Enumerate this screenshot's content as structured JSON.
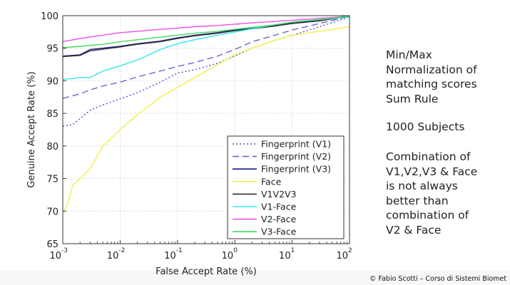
{
  "chart_data": {
    "type": "line",
    "title": "",
    "xlabel": "False Accept Rate (%)",
    "ylabel": "Genuine Accept Rate (%)",
    "xscale": "log",
    "xlim": [
      0.001,
      100
    ],
    "ylim": [
      65,
      100
    ],
    "x_ticks": [
      0.001,
      0.01,
      0.1,
      1,
      10,
      100
    ],
    "x_tick_labels": [
      {
        "base": "10",
        "exp": "-3"
      },
      {
        "base": "10",
        "exp": "-2"
      },
      {
        "base": "10",
        "exp": "-1"
      },
      {
        "base": "10",
        "exp": "0"
      },
      {
        "base": "10",
        "exp": "1"
      },
      {
        "base": "10",
        "exp": "2"
      }
    ],
    "y_ticks": [
      65,
      70,
      75,
      80,
      85,
      90,
      95,
      100
    ],
    "y_tick_labels": [
      "65",
      "70",
      "75",
      "80",
      "85",
      "90",
      "95",
      "100"
    ],
    "grid": true,
    "legend_position": "bottom-right",
    "series": [
      {
        "name": "Fingerprint (V1)",
        "color": "#4f52d6",
        "dash": "2,3",
        "x": [
          0.001,
          0.0015,
          0.002,
          0.003,
          0.005,
          0.01,
          0.02,
          0.05,
          0.1,
          0.2,
          0.5,
          1,
          2,
          5,
          10,
          30,
          100
        ],
        "y": [
          83,
          83.3,
          84.2,
          85.5,
          86.3,
          87.2,
          88.2,
          89.8,
          91.2,
          91.7,
          92.7,
          93.8,
          95,
          96.2,
          97,
          98.3,
          99.8
        ]
      },
      {
        "name": "Fingerprint (V2)",
        "color": "#6468d8",
        "dash": "9,5",
        "x": [
          0.001,
          0.002,
          0.003,
          0.005,
          0.01,
          0.02,
          0.05,
          0.1,
          0.2,
          0.5,
          1,
          2,
          5,
          10,
          30,
          100
        ],
        "y": [
          87.3,
          88,
          88.6,
          89.2,
          89.8,
          90.6,
          91.5,
          92.2,
          92.8,
          93.8,
          94.8,
          96,
          97,
          97.8,
          98.8,
          99.9
        ]
      },
      {
        "name": "Fingerprint (V3)",
        "color": "#1c1c86",
        "dash": "",
        "x": [
          0.001,
          0.002,
          0.003,
          0.01,
          0.02,
          0.05,
          0.1,
          0.2,
          0.5,
          1,
          2,
          5,
          10,
          30,
          100
        ],
        "y": [
          93.8,
          94,
          94.8,
          95.3,
          95.7,
          96.1,
          96.6,
          97,
          97.4,
          97.8,
          98.1,
          98.5,
          98.9,
          99.3,
          100
        ]
      },
      {
        "name": "Face",
        "color": "#f2f04a",
        "dash": "",
        "x": [
          0.001,
          0.0012,
          0.0015,
          0.002,
          0.003,
          0.005,
          0.01,
          0.02,
          0.05,
          0.1,
          0.2,
          0.5,
          1,
          2,
          5,
          10,
          30,
          100
        ],
        "y": [
          69.8,
          71,
          74,
          75,
          76.5,
          80,
          82.5,
          84.8,
          87.5,
          89,
          90.5,
          92.5,
          94,
          95,
          96.2,
          97,
          97.6,
          98.3
        ]
      },
      {
        "name": "V1V2V3",
        "color": "#333333",
        "dash": "",
        "x": [
          0.001,
          0.002,
          0.003,
          0.01,
          0.02,
          0.05,
          0.1,
          0.2,
          0.5,
          1,
          2,
          5,
          10,
          30,
          100
        ],
        "y": [
          93.7,
          93.9,
          94.6,
          95.2,
          95.6,
          96,
          96.5,
          96.9,
          97.3,
          97.7,
          98,
          98.4,
          98.8,
          99.2,
          99.9
        ]
      },
      {
        "name": "V1-Face",
        "color": "#33e6ee",
        "dash": "",
        "x": [
          0.001,
          0.002,
          0.003,
          0.005,
          0.01,
          0.02,
          0.05,
          0.1,
          0.2,
          0.5,
          1,
          2,
          5,
          10,
          30,
          100
        ],
        "y": [
          90.2,
          90.5,
          90.5,
          91.5,
          92.3,
          93.2,
          94.8,
          95.7,
          96.3,
          97,
          97.5,
          98,
          98.6,
          99,
          99.4,
          99.8
        ]
      },
      {
        "name": "V2-Face",
        "color": "#f050e8",
        "dash": "",
        "x": [
          0.001,
          0.002,
          0.005,
          0.01,
          0.02,
          0.05,
          0.1,
          0.2,
          0.5,
          1,
          2,
          5,
          10,
          30,
          100
        ],
        "y": [
          96,
          96.5,
          97,
          97.4,
          97.6,
          97.9,
          98.1,
          98.3,
          98.5,
          98.7,
          98.9,
          99.1,
          99.3,
          99.6,
          99.9
        ]
      },
      {
        "name": "V3-Face",
        "color": "#3fdc5a",
        "dash": "",
        "x": [
          0.001,
          0.002,
          0.005,
          0.01,
          0.02,
          0.05,
          0.1,
          0.2,
          0.5,
          1,
          2,
          5,
          10,
          30,
          100
        ],
        "y": [
          95.1,
          95.3,
          95.6,
          96,
          96.3,
          96.7,
          97,
          97.3,
          97.6,
          97.9,
          98.2,
          98.6,
          99,
          99.4,
          99.9
        ]
      }
    ]
  },
  "notes": {
    "normalization": [
      "Min/Max",
      "Normalization of",
      "matching scores",
      "Sum Rule"
    ],
    "subjects": [
      "1000 Subjects"
    ],
    "conclusion": [
      "Combination of",
      "V1,V2,V3 & Face",
      "is not always",
      "better than",
      "combination of",
      "V2 & Face"
    ]
  },
  "credit": "© Fabio Scotti – Corso di Sistemi Biomet"
}
